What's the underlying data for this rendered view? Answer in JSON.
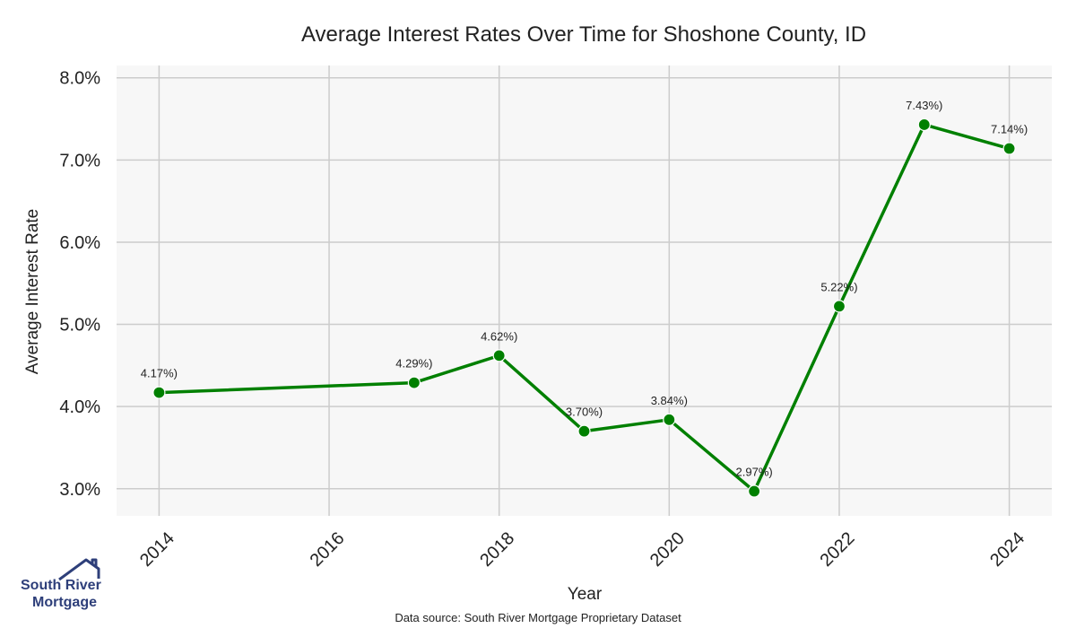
{
  "chart_data": {
    "type": "line",
    "title": "Average Interest Rates Over Time for Shoshone County, ID",
    "xlabel": "Year",
    "ylabel": "Average Interest Rate",
    "x": [
      2014,
      2017,
      2018,
      2019,
      2020,
      2021,
      2022,
      2023,
      2024
    ],
    "values": [
      4.17,
      4.29,
      4.62,
      3.7,
      3.84,
      2.97,
      5.22,
      7.43,
      7.14
    ],
    "point_labels": [
      "4.17%)",
      "4.29%)",
      "4.62%)",
      "3.70%)",
      "3.84%)",
      "2.97%)",
      "5.22%)",
      "7.43%)",
      "7.14%)"
    ],
    "xticks": [
      2014,
      2016,
      2018,
      2020,
      2022,
      2024
    ],
    "xtick_labels": [
      "2014",
      "2016",
      "2018",
      "2020",
      "2022",
      "2024"
    ],
    "yticks": [
      3.0,
      4.0,
      5.0,
      6.0,
      7.0,
      8.0
    ],
    "ytick_labels": [
      "3.0%",
      "4.0%",
      "5.0%",
      "6.0%",
      "7.0%",
      "8.0%"
    ],
    "xlim": [
      2013.5,
      2024.5
    ],
    "ylim": [
      2.67,
      8.15
    ],
    "grid": true,
    "colors": {
      "line": "#008000",
      "plot_bg": "#f7f7f7",
      "grid": "#cccccc"
    }
  },
  "footer": {
    "source": "Data source: South River Mortgage Proprietary Dataset"
  },
  "logo": {
    "line1": "South River",
    "line2": "Mortgage",
    "icon": "house-roof-icon",
    "color": "#2e3f7a"
  }
}
